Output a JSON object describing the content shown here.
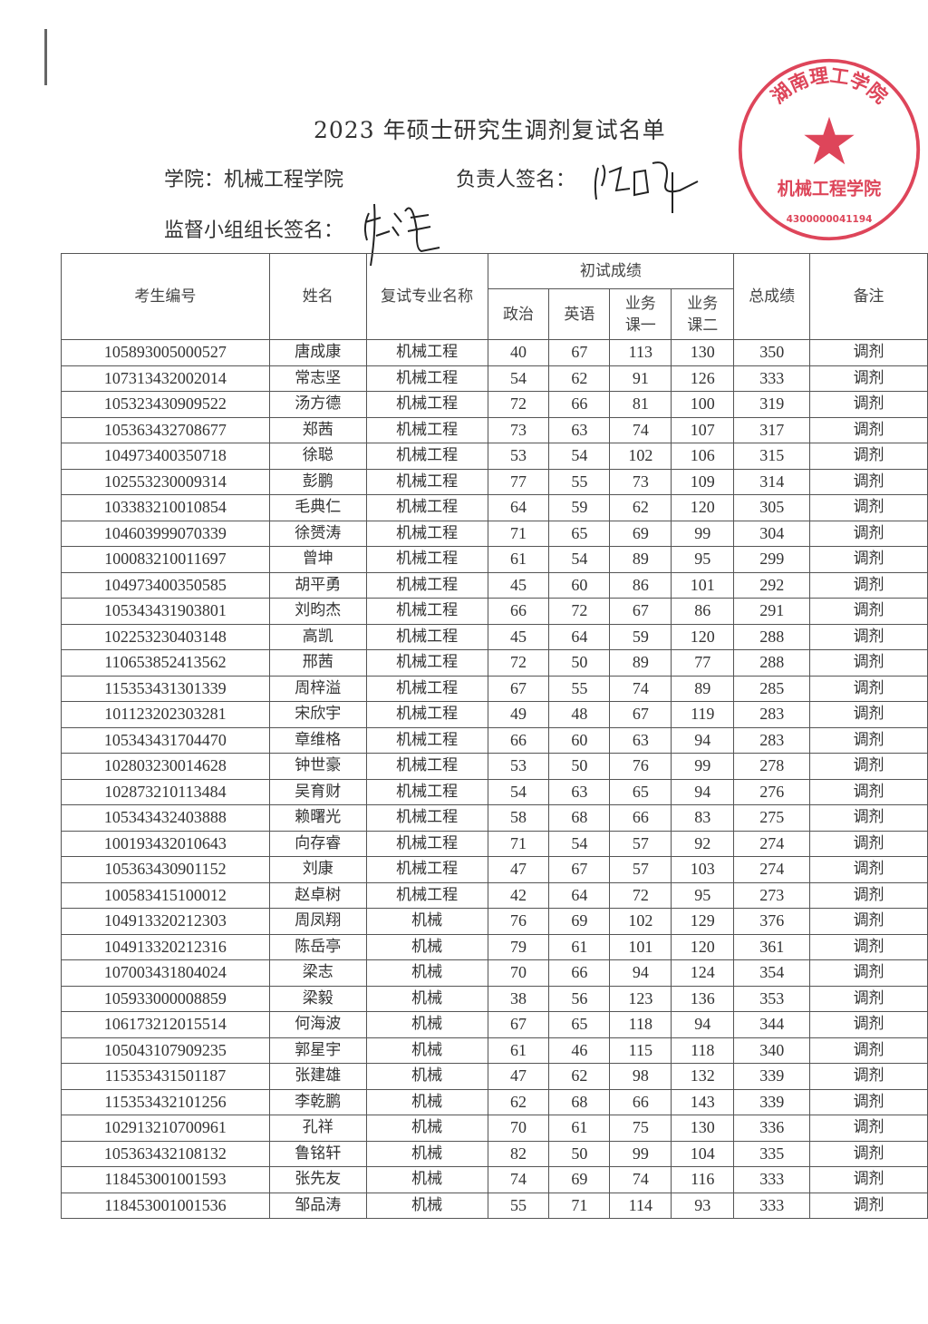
{
  "title": "2023 年硕士研究生调剂复试名单",
  "college_label": "学院：机械工程学院",
  "responsible_label": "负责人签名：",
  "supervisor_label": "监督小组组长签名：",
  "stamp": {
    "text_top": "湖南理工学院",
    "text_center": "机械工程学院",
    "code": "4300000041194",
    "color": "#d8253d"
  },
  "table": {
    "headers": {
      "id": "考生编号",
      "name": "姓名",
      "major": "复试专业名称",
      "prelim": "初试成绩",
      "politics": "政治",
      "english": "英语",
      "course1": "业务课一",
      "course2": "业务课二",
      "total": "总成绩",
      "remark": "备注"
    },
    "rows": [
      [
        "105893005000527",
        "唐成康",
        "机械工程",
        "40",
        "67",
        "113",
        "130",
        "350",
        "调剂"
      ],
      [
        "107313432002014",
        "常志坚",
        "机械工程",
        "54",
        "62",
        "91",
        "126",
        "333",
        "调剂"
      ],
      [
        "105323430909522",
        "汤方德",
        "机械工程",
        "72",
        "66",
        "81",
        "100",
        "319",
        "调剂"
      ],
      [
        "105363432708677",
        "郑茜",
        "机械工程",
        "73",
        "63",
        "74",
        "107",
        "317",
        "调剂"
      ],
      [
        "104973400350718",
        "徐聪",
        "机械工程",
        "53",
        "54",
        "102",
        "106",
        "315",
        "调剂"
      ],
      [
        "102553230009314",
        "彭鹏",
        "机械工程",
        "77",
        "55",
        "73",
        "109",
        "314",
        "调剂"
      ],
      [
        "103383210010854",
        "毛典仁",
        "机械工程",
        "64",
        "59",
        "62",
        "120",
        "305",
        "调剂"
      ],
      [
        "104603999070339",
        "徐赟涛",
        "机械工程",
        "71",
        "65",
        "69",
        "99",
        "304",
        "调剂"
      ],
      [
        "100083210011697",
        "曾坤",
        "机械工程",
        "61",
        "54",
        "89",
        "95",
        "299",
        "调剂"
      ],
      [
        "104973400350585",
        "胡平勇",
        "机械工程",
        "45",
        "60",
        "86",
        "101",
        "292",
        "调剂"
      ],
      [
        "105343431903801",
        "刘昀杰",
        "机械工程",
        "66",
        "72",
        "67",
        "86",
        "291",
        "调剂"
      ],
      [
        "102253230403148",
        "高凯",
        "机械工程",
        "45",
        "64",
        "59",
        "120",
        "288",
        "调剂"
      ],
      [
        "110653852413562",
        "邢茜",
        "机械工程",
        "72",
        "50",
        "89",
        "77",
        "288",
        "调剂"
      ],
      [
        "115353431301339",
        "周梓溢",
        "机械工程",
        "67",
        "55",
        "74",
        "89",
        "285",
        "调剂"
      ],
      [
        "101123202303281",
        "宋欣宇",
        "机械工程",
        "49",
        "48",
        "67",
        "119",
        "283",
        "调剂"
      ],
      [
        "105343431704470",
        "章维格",
        "机械工程",
        "66",
        "60",
        "63",
        "94",
        "283",
        "调剂"
      ],
      [
        "102803230014628",
        "钟世豪",
        "机械工程",
        "53",
        "50",
        "76",
        "99",
        "278",
        "调剂"
      ],
      [
        "102873210113484",
        "吴育财",
        "机械工程",
        "54",
        "63",
        "65",
        "94",
        "276",
        "调剂"
      ],
      [
        "105343432403888",
        "赖曙光",
        "机械工程",
        "58",
        "68",
        "66",
        "83",
        "275",
        "调剂"
      ],
      [
        "100193432010643",
        "向存睿",
        "机械工程",
        "71",
        "54",
        "57",
        "92",
        "274",
        "调剂"
      ],
      [
        "105363430901152",
        "刘康",
        "机械工程",
        "47",
        "67",
        "57",
        "103",
        "274",
        "调剂"
      ],
      [
        "100583415100012",
        "赵卓树",
        "机械工程",
        "42",
        "64",
        "72",
        "95",
        "273",
        "调剂"
      ],
      [
        "104913320212303",
        "周凤翔",
        "机械",
        "76",
        "69",
        "102",
        "129",
        "376",
        "调剂"
      ],
      [
        "104913320212316",
        "陈岳亭",
        "机械",
        "79",
        "61",
        "101",
        "120",
        "361",
        "调剂"
      ],
      [
        "107003431804024",
        "梁志",
        "机械",
        "70",
        "66",
        "94",
        "124",
        "354",
        "调剂"
      ],
      [
        "105933000008859",
        "梁毅",
        "机械",
        "38",
        "56",
        "123",
        "136",
        "353",
        "调剂"
      ],
      [
        "106173212015514",
        "何海波",
        "机械",
        "67",
        "65",
        "118",
        "94",
        "344",
        "调剂"
      ],
      [
        "105043107909235",
        "郭星宇",
        "机械",
        "61",
        "46",
        "115",
        "118",
        "340",
        "调剂"
      ],
      [
        "115353431501187",
        "张建雄",
        "机械",
        "47",
        "62",
        "98",
        "132",
        "339",
        "调剂"
      ],
      [
        "115353432101256",
        "李乾鹏",
        "机械",
        "62",
        "68",
        "66",
        "143",
        "339",
        "调剂"
      ],
      [
        "102913210700961",
        "孔祥",
        "机械",
        "70",
        "61",
        "75",
        "130",
        "336",
        "调剂"
      ],
      [
        "105363432108132",
        "鲁铭轩",
        "机械",
        "82",
        "50",
        "99",
        "104",
        "335",
        "调剂"
      ],
      [
        "118453001001593",
        "张先友",
        "机械",
        "74",
        "69",
        "74",
        "116",
        "333",
        "调剂"
      ],
      [
        "118453001001536",
        "邹品涛",
        "机械",
        "55",
        "71",
        "114",
        "93",
        "333",
        "调剂"
      ]
    ]
  }
}
